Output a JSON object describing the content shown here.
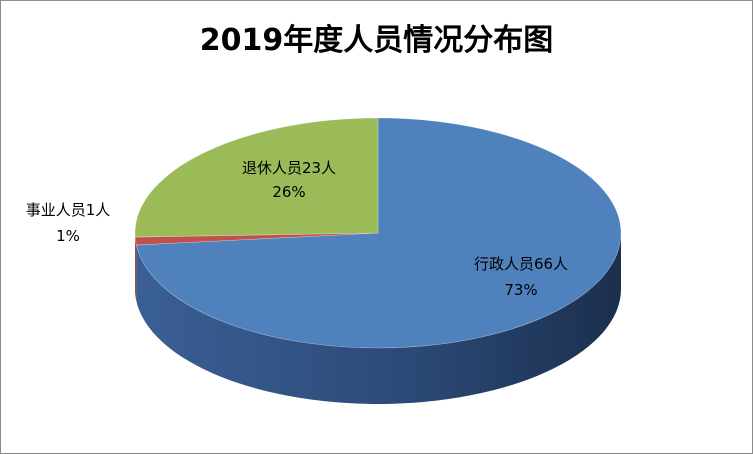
{
  "chart_data": {
    "type": "pie",
    "title": "2019年度人员情况分布图",
    "slices": [
      {
        "name": "行政人员",
        "count_label": "66人",
        "value": 66,
        "percent_label": "73%",
        "color": "#4f81bd",
        "side_color": "#2f5288"
      },
      {
        "name": "事业人员",
        "count_label": "1人",
        "value": 1,
        "percent_label": "1%",
        "color": "#c0504d",
        "side_color": "#8b2f2d"
      },
      {
        "name": "退休人员",
        "count_label": "23人",
        "value": 23,
        "percent_label": "26%",
        "color": "#9bbb59",
        "side_color": "#6f8a3c"
      }
    ],
    "start_angle_deg": 0,
    "direction": "clockwise",
    "three_d": true,
    "legend": "none",
    "data_labels": "category-value-percent"
  }
}
